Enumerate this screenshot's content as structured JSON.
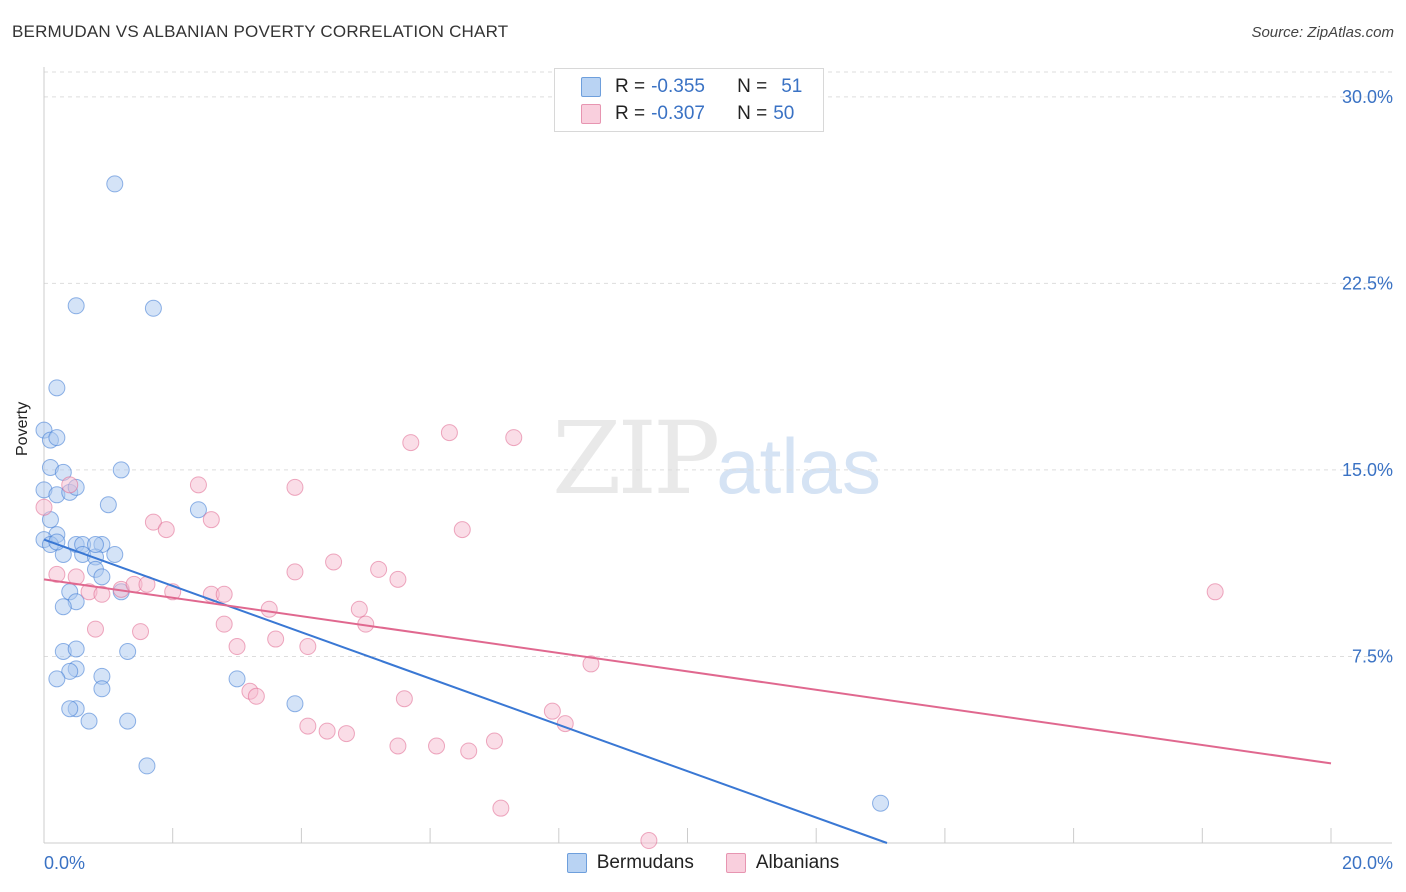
{
  "chart_data": {
    "type": "scatter",
    "title": "BERMUDAN VS ALBANIAN POVERTY CORRELATION CHART",
    "source": "Source: ZipAtlas.com",
    "ylabel": "Poverty",
    "xlim": [
      0,
      20
    ],
    "ylim": [
      0,
      31
    ],
    "x_tick_labels": {
      "left": "0.0%",
      "right": "20.0%"
    },
    "y_ticks": [
      {
        "value": 7.5,
        "label": "7.5%"
      },
      {
        "value": 15,
        "label": "15.0%"
      },
      {
        "value": 22.5,
        "label": "22.5%"
      },
      {
        "value": 30,
        "label": "30.0%"
      }
    ],
    "watermark": {
      "zip": "ZIP",
      "atlas": "atlas"
    },
    "series": [
      {
        "name": "Bermudans",
        "color": "#3a78d4",
        "fill": "#a9c8ef",
        "r_label": "R =",
        "r_value": "-0.355",
        "n_label": "N =",
        "n_value": "51",
        "trend": {
          "x0": 0,
          "y0": 12.2,
          "x1": 13.1,
          "y1": 0
        },
        "points": [
          [
            0.0,
            16.6
          ],
          [
            0.1,
            16.2
          ],
          [
            0.2,
            16.3
          ],
          [
            0.1,
            15.1
          ],
          [
            0.3,
            14.9
          ],
          [
            0.0,
            14.2
          ],
          [
            0.2,
            14.0
          ],
          [
            0.4,
            14.1
          ],
          [
            0.5,
            14.3
          ],
          [
            0.1,
            13.0
          ],
          [
            0.2,
            12.4
          ],
          [
            0.0,
            12.2
          ],
          [
            0.1,
            12.0
          ],
          [
            0.5,
            12.0
          ],
          [
            0.6,
            12.0
          ],
          [
            0.9,
            12.0
          ],
          [
            0.3,
            11.6
          ],
          [
            0.6,
            11.6
          ],
          [
            0.8,
            11.5
          ],
          [
            1.1,
            11.6
          ],
          [
            0.8,
            11.0
          ],
          [
            0.9,
            10.7
          ],
          [
            0.4,
            10.1
          ],
          [
            0.5,
            9.7
          ],
          [
            0.3,
            9.5
          ],
          [
            1.2,
            10.1
          ],
          [
            0.3,
            7.7
          ],
          [
            0.5,
            7.8
          ],
          [
            0.5,
            7.0
          ],
          [
            0.4,
            6.9
          ],
          [
            0.2,
            6.6
          ],
          [
            0.9,
            6.7
          ],
          [
            0.9,
            6.2
          ],
          [
            0.5,
            5.4
          ],
          [
            0.4,
            5.4
          ],
          [
            0.7,
            4.9
          ],
          [
            1.3,
            4.9
          ],
          [
            1.1,
            26.5
          ],
          [
            0.5,
            21.6
          ],
          [
            1.7,
            21.5
          ],
          [
            0.2,
            18.3
          ],
          [
            1.2,
            15.0
          ],
          [
            1.0,
            13.6
          ],
          [
            2.4,
            13.4
          ],
          [
            1.3,
            7.7
          ],
          [
            3.0,
            6.6
          ],
          [
            3.9,
            5.6
          ],
          [
            1.6,
            3.1
          ],
          [
            13.0,
            1.6
          ],
          [
            0.2,
            12.1
          ],
          [
            0.8,
            12.0
          ]
        ]
      },
      {
        "name": "Albanians",
        "color": "#e0688f",
        "fill": "#f6bcd0",
        "r_label": "R =",
        "r_value": "-0.307",
        "n_label": "N =",
        "n_value": "50",
        "trend": {
          "x0": 0,
          "y0": 10.6,
          "x1": 20,
          "y1": 3.2
        },
        "points": [
          [
            0.0,
            13.5
          ],
          [
            0.2,
            10.8
          ],
          [
            0.4,
            14.4
          ],
          [
            0.5,
            10.7
          ],
          [
            0.7,
            10.1
          ],
          [
            0.9,
            10.0
          ],
          [
            1.2,
            10.2
          ],
          [
            1.4,
            10.4
          ],
          [
            1.6,
            10.4
          ],
          [
            0.8,
            8.6
          ],
          [
            1.5,
            8.5
          ],
          [
            1.7,
            12.9
          ],
          [
            1.9,
            12.6
          ],
          [
            2.4,
            14.4
          ],
          [
            2.0,
            10.1
          ],
          [
            2.6,
            10.0
          ],
          [
            2.6,
            13.0
          ],
          [
            2.8,
            10.0
          ],
          [
            2.8,
            8.8
          ],
          [
            3.0,
            7.9
          ],
          [
            3.2,
            6.1
          ],
          [
            3.3,
            5.9
          ],
          [
            3.5,
            9.4
          ],
          [
            3.6,
            8.2
          ],
          [
            3.9,
            10.9
          ],
          [
            3.9,
            14.3
          ],
          [
            4.1,
            7.9
          ],
          [
            4.1,
            4.7
          ],
          [
            4.4,
            4.5
          ],
          [
            4.5,
            11.3
          ],
          [
            4.7,
            4.4
          ],
          [
            4.9,
            9.4
          ],
          [
            5.0,
            8.8
          ],
          [
            5.2,
            11.0
          ],
          [
            5.5,
            3.9
          ],
          [
            5.5,
            10.6
          ],
          [
            5.6,
            5.8
          ],
          [
            5.7,
            16.1
          ],
          [
            6.1,
            3.9
          ],
          [
            6.3,
            16.5
          ],
          [
            6.5,
            12.6
          ],
          [
            6.6,
            3.7
          ],
          [
            7.0,
            4.1
          ],
          [
            7.3,
            16.3
          ],
          [
            7.1,
            1.4
          ],
          [
            7.9,
            5.3
          ],
          [
            8.1,
            4.8
          ],
          [
            8.5,
            7.2
          ],
          [
            9.4,
            0.1
          ],
          [
            18.2,
            10.1
          ]
        ]
      }
    ]
  }
}
